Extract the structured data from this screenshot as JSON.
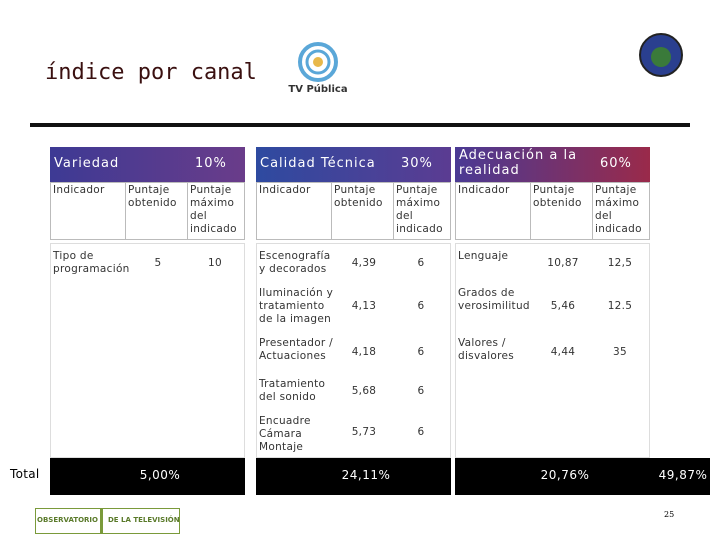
{
  "header": {
    "title": "índice por canal",
    "logo": "TV Pública"
  },
  "panels": [
    {
      "name": "Variedad",
      "weight": "10%",
      "columns": [
        "Indicador",
        "Puntaje obtenido",
        "Puntaje máximo del indicado"
      ],
      "rows": [
        [
          "Tipo de programación",
          "5",
          "10"
        ]
      ],
      "total": "5,00%"
    },
    {
      "name": "Calidad Técnica",
      "weight": "30%",
      "columns": [
        "Indicador",
        "Puntaje obtenido",
        "Puntaje máximo del indicado"
      ],
      "rows": [
        [
          "Escenografía y decorados",
          "4,39",
          "6"
        ],
        [
          "Iluminación y tratamiento de la imagen",
          "4,13",
          "6"
        ],
        [
          "Presentador / Actuaciones",
          "4,18",
          "6"
        ],
        [
          "Tratamiento del sonido",
          "5,68",
          "6"
        ],
        [
          "Encuadre Cámara Montaje",
          "5,73",
          "6"
        ]
      ],
      "total": "24,11%"
    },
    {
      "name": "Adecuación a la realidad",
      "weight": "60%",
      "columns": [
        "Indicador",
        "Puntaje obtenido",
        "Puntaje máximo del indicado"
      ],
      "rows": [
        [
          "Lenguaje",
          "10,87",
          "12,5"
        ],
        [
          "Grados de verosimilitud",
          "5,46",
          "12.5"
        ],
        [
          "Valores / disvalores",
          "4,44",
          "35"
        ]
      ],
      "total": "20,76%"
    }
  ],
  "total": {
    "label": "Total",
    "value": "49,87%"
  },
  "footer": {
    "logo_left": "OBSERVATORIO",
    "logo_right": "DE LA TELEVISIÓN",
    "page": "25"
  }
}
